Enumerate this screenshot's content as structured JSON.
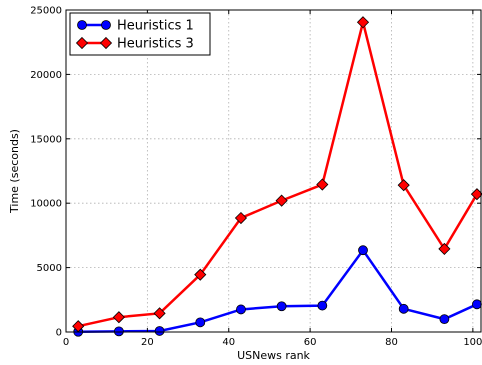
{
  "chart_data": {
    "type": "line",
    "xlabel": "USNews rank",
    "ylabel": "Time (seconds)",
    "xlim": [
      0,
      102
    ],
    "ylim": [
      0,
      25000
    ],
    "xticks": [
      0,
      20,
      40,
      60,
      80,
      100
    ],
    "yticks": [
      0,
      5000,
      10000,
      15000,
      20000,
      25000
    ],
    "grid": true,
    "legend_position": "top-left",
    "x": [
      3,
      13,
      23,
      33,
      43,
      53,
      63,
      73,
      83,
      93,
      101
    ],
    "series": [
      {
        "name": "Heuristics 1",
        "color": "#0000ff",
        "marker": "circle",
        "values": [
          20,
          50,
          80,
          750,
          1750,
          2000,
          2050,
          6350,
          1800,
          1000,
          2150
        ]
      },
      {
        "name": "Heuristics 3",
        "color": "#ff0000",
        "marker": "diamond",
        "values": [
          450,
          1150,
          1450,
          4450,
          8850,
          10200,
          11450,
          24050,
          11400,
          6450,
          10700
        ]
      }
    ]
  }
}
